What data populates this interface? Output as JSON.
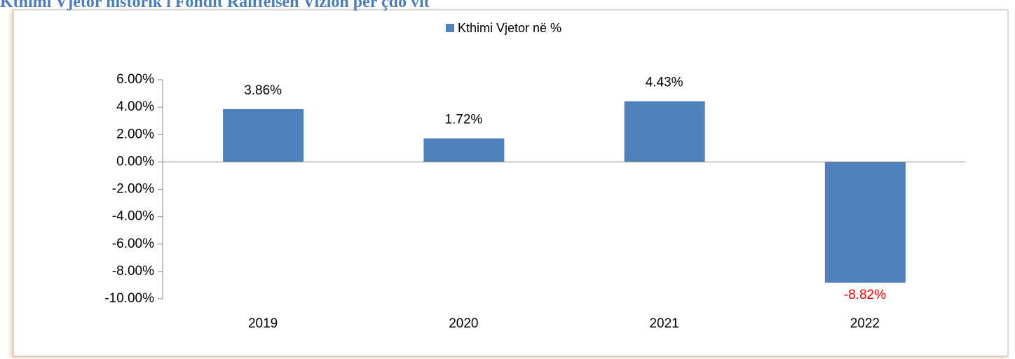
{
  "chart_data": {
    "type": "bar",
    "title": "Kthimi Vjetor historik i Fondit Raiffeisen Vizion për çdo vit",
    "categories": [
      "2019",
      "2020",
      "2021",
      "2022"
    ],
    "series": [
      {
        "name": "Kthimi Vjetor në %",
        "color": "#4f81bd",
        "values": [
          3.86,
          1.72,
          4.43,
          -8.82
        ],
        "value_labels": [
          "3.86%",
          "1.72%",
          "4.43%",
          "-8.82%"
        ],
        "value_label_colors": [
          "#000000",
          "#000000",
          "#000000",
          "#ff0000"
        ]
      }
    ],
    "ylim": [
      -10,
      6
    ],
    "yticks": [
      {
        "value": 6,
        "label": "6.00%"
      },
      {
        "value": 4,
        "label": "4.00%"
      },
      {
        "value": 2,
        "label": "2.00%"
      },
      {
        "value": 0,
        "label": "0.00%"
      },
      {
        "value": -2,
        "label": "-2.00%"
      },
      {
        "value": -4,
        "label": "-4.00%"
      },
      {
        "value": -6,
        "label": "-6.00%"
      },
      {
        "value": -8,
        "label": "-8.00%"
      },
      {
        "value": -10,
        "label": "-10.00%"
      }
    ],
    "legend": "top"
  }
}
